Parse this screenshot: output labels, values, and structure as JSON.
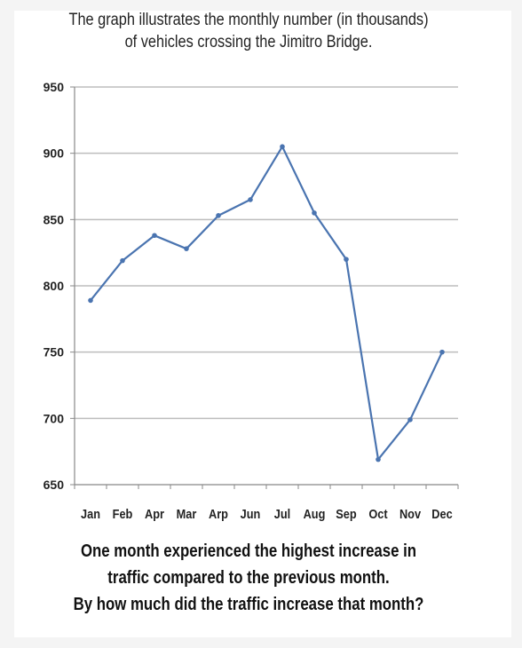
{
  "chart_data": {
    "type": "line",
    "title_lines": [
      "The graph illustrates the monthly number (in thousands)",
      "of vehicles crossing the Jimitro Bridge."
    ],
    "categories": [
      "Jan",
      "Feb",
      "Apr",
      "Mar",
      "Arp",
      "Jun",
      "Jul",
      "Aug",
      "Sep",
      "Oct",
      "Nov",
      "Dec"
    ],
    "values": [
      789,
      819,
      838,
      828,
      853,
      865,
      905,
      855,
      820,
      669,
      699,
      750
    ],
    "ylim": [
      650,
      950
    ],
    "yticks": [
      650,
      700,
      750,
      800,
      850,
      900,
      950
    ],
    "grid": true,
    "xlabel": "",
    "ylabel": "",
    "line_color": "#4a74b0",
    "grid_color": "#bdbdbd"
  },
  "question_lines": [
    "One month experienced the highest increase in",
    "traffic compared to the previous month.",
    "By how much did the traffic increase that month?"
  ]
}
